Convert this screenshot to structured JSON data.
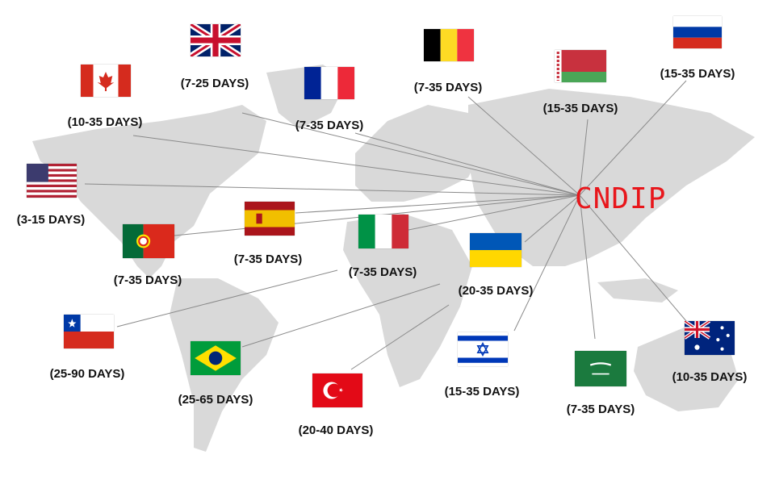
{
  "hub": {
    "label": "CNDIP",
    "color": "#e8161b"
  },
  "map_color": "#d9d9d9",
  "line_color": "#8a8a8a",
  "destinations": [
    {
      "country": "uk",
      "label": "(7-25 DAYS)"
    },
    {
      "country": "canada",
      "label": "(10-35 DAYS)"
    },
    {
      "country": "france",
      "label": "(7-35 DAYS)"
    },
    {
      "country": "belgium",
      "label": "(7-35 DAYS)"
    },
    {
      "country": "belarus",
      "label": "(15-35 DAYS)"
    },
    {
      "country": "russia",
      "label": "(15-35 DAYS)"
    },
    {
      "country": "usa",
      "label": "(3-15 DAYS)"
    },
    {
      "country": "spain",
      "label": "(7-35 DAYS)"
    },
    {
      "country": "portugal",
      "label": "(7-35 DAYS)"
    },
    {
      "country": "italy",
      "label": "(7-35 DAYS)"
    },
    {
      "country": "ukraine",
      "label": "(20-35 DAYS)"
    },
    {
      "country": "chile",
      "label": "(25-90 DAYS)"
    },
    {
      "country": "brazil",
      "label": "(25-65 DAYS)"
    },
    {
      "country": "turkey",
      "label": "(20-40 DAYS)"
    },
    {
      "country": "israel",
      "label": "(15-35 DAYS)"
    },
    {
      "country": "saudi-arabia",
      "label": "(7-35 DAYS)"
    },
    {
      "country": "australia",
      "label": "(10-35 DAYS)"
    }
  ]
}
